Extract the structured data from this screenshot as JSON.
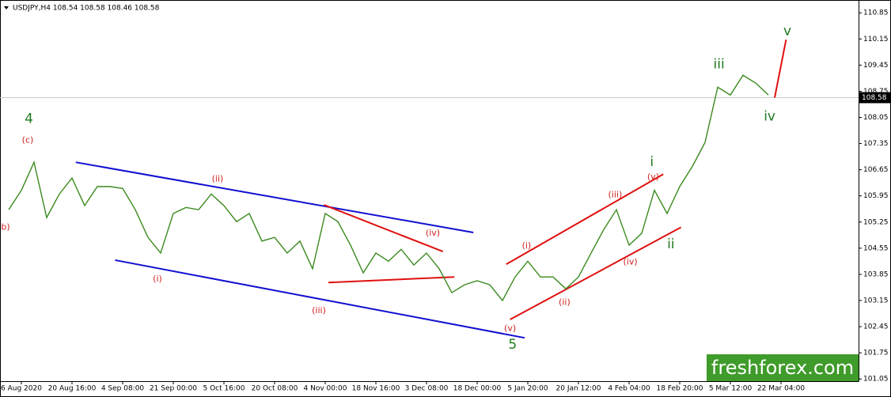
{
  "chart_data": {
    "type": "line",
    "title": "USDJPY,H4 108.54 108.58 108.46 108.58",
    "categories": [
      null,
      "6 Aug 2020",
      null,
      null,
      null,
      "20 Aug 16:00",
      null,
      null,
      null,
      "4 Sep 08:00",
      null,
      null,
      null,
      "21 Sep 00:00",
      null,
      null,
      null,
      "5 Oct 16:00",
      null,
      null,
      null,
      "20 Oct 08:00",
      null,
      null,
      null,
      "4 Nov 00:00",
      null,
      null,
      null,
      "18 Nov 16:00",
      null,
      null,
      null,
      "3 Dec 08:00",
      null,
      null,
      null,
      "18 Dec 00:00",
      null,
      null,
      null,
      "5 Jan 20:00",
      null,
      null,
      null,
      "20 Jan 12:00",
      null,
      null,
      null,
      "4 Feb 04:00",
      null,
      null,
      null,
      "18 Feb 20:00",
      null,
      null,
      null,
      "5 Mar 12:00",
      null,
      null,
      null,
      "22 Mar 04:00"
    ],
    "values": [
      105.58,
      106.1,
      106.85,
      105.37,
      106.0,
      106.43,
      105.69,
      106.2,
      106.2,
      106.15,
      105.58,
      104.84,
      104.42,
      105.48,
      105.64,
      105.58,
      106.0,
      105.69,
      105.26,
      105.48,
      104.74,
      104.84,
      104.42,
      104.74,
      104.0,
      105.48,
      105.26,
      104.63,
      103.89,
      104.42,
      104.2,
      104.52,
      104.1,
      104.42,
      104.0,
      103.36,
      103.57,
      103.68,
      103.57,
      103.15,
      103.78,
      104.2,
      103.78,
      103.78,
      103.46,
      103.78,
      104.42,
      105.05,
      105.58,
      104.63,
      104.95,
      106.1,
      105.48,
      106.2,
      106.74,
      107.38,
      108.86,
      108.65,
      109.18,
      108.97,
      108.65,
      null
    ],
    "color": "#3a8a1e",
    "ylim": [
      100.99,
      111.13
    ],
    "yticks": [
      101.05,
      101.75,
      102.45,
      103.15,
      103.85,
      104.55,
      105.25,
      105.95,
      106.65,
      107.35,
      108.05,
      108.75,
      109.45,
      110.15,
      110.85
    ],
    "last_price": 108.58,
    "annotations": [
      {
        "text": "4",
        "color": "#1e7a1e",
        "x": 1.6,
        "y": 108.01
      },
      {
        "text": "(c)",
        "color": "#d02020",
        "x": 1.5,
        "y": 107.44
      },
      {
        "text": "b)",
        "color": "#d02020",
        "x": -0.25,
        "y": 105.11
      },
      {
        "text": "(ii)",
        "color": "#d02020",
        "x": 16.5,
        "y": 106.4
      },
      {
        "text": "(i)",
        "color": "#d02020",
        "x": 11.75,
        "y": 103.72
      },
      {
        "text": "(iii)",
        "color": "#d02020",
        "x": 24.5,
        "y": 102.87
      },
      {
        "text": "(iv)",
        "color": "#d02020",
        "x": 33.5,
        "y": 104.95
      },
      {
        "text": "(v)",
        "color": "#d02020",
        "x": 39.6,
        "y": 102.4
      },
      {
        "text": "5",
        "color": "#1e7a1e",
        "x": 39.8,
        "y": 101.96
      },
      {
        "text": "(i)",
        "color": "#d02020",
        "x": 40.9,
        "y": 104.61
      },
      {
        "text": "(ii)",
        "color": "#d02020",
        "x": 43.9,
        "y": 103.1
      },
      {
        "text": "(iii)",
        "color": "#d02020",
        "x": 47.9,
        "y": 105.98
      },
      {
        "text": "(iv)",
        "color": "#d02020",
        "x": 49.1,
        "y": 104.18
      },
      {
        "text": "(v)",
        "color": "#d02020",
        "x": 50.9,
        "y": 106.45
      },
      {
        "text": "i",
        "color": "#1e7a1e",
        "x": 50.8,
        "y": 106.85
      },
      {
        "text": "ii",
        "color": "#1e7a1e",
        "x": 52.3,
        "y": 104.65
      },
      {
        "text": "iii",
        "color": "#1e7a1e",
        "x": 56.1,
        "y": 109.47
      },
      {
        "text": "iv",
        "color": "#1e7a1e",
        "x": 60.1,
        "y": 108.07
      },
      {
        "text": "v",
        "color": "#1e7a1e",
        "x": 61.5,
        "y": 110.36
      }
    ],
    "lines": [
      {
        "color": "#1010d0",
        "x": [
          5.3,
          36.7
        ],
        "y": [
          106.85,
          104.97
        ]
      },
      {
        "color": "#1010d0",
        "x": [
          8.4,
          40.75
        ],
        "y": [
          104.23,
          102.15
        ]
      },
      {
        "color": "#e01010",
        "x": [
          24.9,
          34.3
        ],
        "y": [
          105.71,
          104.46
        ]
      },
      {
        "color": "#e01010",
        "x": [
          25.25,
          35.2
        ],
        "y": [
          103.63,
          103.78
        ]
      },
      {
        "color": "#e01010",
        "x": [
          39.3,
          51.7
        ],
        "y": [
          104.12,
          106.53
        ]
      },
      {
        "color": "#e01010",
        "x": [
          39.6,
          53.1
        ],
        "y": [
          102.64,
          105.11
        ]
      },
      {
        "color": "#e01010",
        "x": [
          60.5,
          61.4
        ],
        "y": [
          108.58,
          110.13
        ]
      }
    ],
    "watermark": "freshforex.com"
  }
}
